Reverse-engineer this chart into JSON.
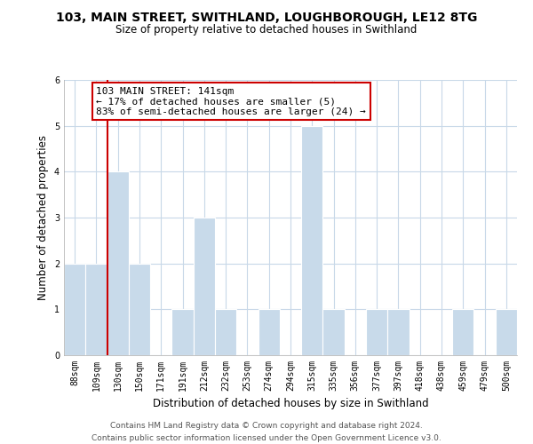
{
  "title1": "103, MAIN STREET, SWITHLAND, LOUGHBOROUGH, LE12 8TG",
  "title2": "Size of property relative to detached houses in Swithland",
  "xlabel": "Distribution of detached houses by size in Swithland",
  "ylabel": "Number of detached properties",
  "bins": [
    "88sqm",
    "109sqm",
    "130sqm",
    "150sqm",
    "171sqm",
    "191sqm",
    "212sqm",
    "232sqm",
    "253sqm",
    "274sqm",
    "294sqm",
    "315sqm",
    "335sqm",
    "356sqm",
    "377sqm",
    "397sqm",
    "418sqm",
    "438sqm",
    "459sqm",
    "479sqm",
    "500sqm"
  ],
  "counts": [
    2,
    2,
    4,
    2,
    0,
    1,
    3,
    1,
    0,
    1,
    0,
    5,
    1,
    0,
    1,
    1,
    0,
    0,
    1,
    0,
    1
  ],
  "property_line_bin_idx": 2,
  "annotation_title": "103 MAIN STREET: 141sqm",
  "annotation_line1": "← 17% of detached houses are smaller (5)",
  "annotation_line2": "83% of semi-detached houses are larger (24) →",
  "bar_color": "#c8daea",
  "line_color": "#cc0000",
  "box_edge_color": "#cc0000",
  "footer1": "Contains HM Land Registry data © Crown copyright and database right 2024.",
  "footer2": "Contains public sector information licensed under the Open Government Licence v3.0.",
  "ylim": [
    0,
    6
  ],
  "yticks": [
    0,
    1,
    2,
    3,
    4,
    5,
    6
  ],
  "grid_color": "#c8d8e8",
  "bg_color": "#f0f4f8"
}
